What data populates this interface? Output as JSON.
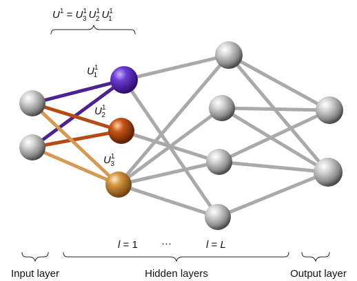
{
  "nodes": {
    "input_1": {
      "role": "input"
    },
    "input_2": {
      "role": "input"
    },
    "l1_u1": {
      "role": "hidden",
      "color": "#5b2aa8"
    },
    "l1_u2": {
      "role": "hidden",
      "color": "#b8480c"
    },
    "l1_u3": {
      "role": "hidden",
      "color": "#c9893a"
    },
    "h_top": {
      "role": "hidden"
    },
    "h_mid1": {
      "role": "hidden"
    },
    "h_mid2": {
      "role": "hidden"
    },
    "h_bot": {
      "role": "hidden"
    },
    "out_1": {
      "role": "output"
    },
    "out_2": {
      "role": "output"
    }
  },
  "edges": [
    {
      "from": "input_1",
      "to": "l1_u1",
      "color": "#4b2390"
    },
    {
      "from": "input_2",
      "to": "l1_u1",
      "color": "#4b2390"
    },
    {
      "from": "input_1",
      "to": "l1_u2",
      "color": "#b54a12"
    },
    {
      "from": "input_2",
      "to": "l1_u2",
      "color": "#b54a12"
    },
    {
      "from": "input_1",
      "to": "l1_u3",
      "color": "#d49a55"
    },
    {
      "from": "input_2",
      "to": "l1_u3",
      "color": "#d49a55"
    },
    {
      "from": "l1_u1",
      "to": "h_top",
      "color": "#a9a9a9"
    },
    {
      "from": "l1_u1",
      "to": "h_bot",
      "color": "#a9a9a9"
    },
    {
      "from": "l1_u2",
      "to": "h_mid2",
      "color": "#a9a9a9"
    },
    {
      "from": "l1_u3",
      "to": "h_top",
      "color": "#a9a9a9"
    },
    {
      "from": "l1_u3",
      "to": "h_mid1",
      "color": "#a9a9a9"
    },
    {
      "from": "l1_u3",
      "to": "h_mid2",
      "color": "#a9a9a9"
    },
    {
      "from": "l1_u3",
      "to": "h_bot",
      "color": "#a9a9a9"
    },
    {
      "from": "h_top",
      "to": "out_1",
      "color": "#a9a9a9"
    },
    {
      "from": "h_top",
      "to": "out_2",
      "color": "#a9a9a9"
    },
    {
      "from": "h_mid1",
      "to": "out_1",
      "color": "#a9a9a9"
    },
    {
      "from": "h_mid1",
      "to": "out_2",
      "color": "#a9a9a9"
    },
    {
      "from": "h_mid2",
      "to": "out_1",
      "color": "#a9a9a9"
    },
    {
      "from": "h_mid2",
      "to": "out_2",
      "color": "#a9a9a9"
    },
    {
      "from": "h_bot",
      "to": "out_2",
      "color": "#a9a9a9"
    }
  ],
  "labels": {
    "unitary_eq": {
      "lhs_base": "U",
      "lhs_sup": "1",
      "equals": " = ",
      "t1_base": "U",
      "t1_sup": "1",
      "t1_sub": "3",
      "t2_base": "U",
      "t2_sup": "1",
      "t2_sub": "2",
      "t3_base": "U",
      "t3_sup": "1",
      "t3_sub": "1"
    },
    "u1": {
      "base": "U",
      "sup": "1",
      "sub": "1"
    },
    "u2": {
      "base": "U",
      "sup": "1",
      "sub": "2"
    },
    "u3": {
      "base": "U",
      "sup": "1",
      "sub": "3"
    },
    "layer_first": {
      "var": "l",
      "rest": " = 1"
    },
    "layer_dots": "···",
    "layer_last": {
      "var": "l",
      "eq": " = ",
      "val": "L"
    },
    "input_layer": "Input layer",
    "hidden_layers": "Hidden layers",
    "output_layer": "Output layer"
  }
}
